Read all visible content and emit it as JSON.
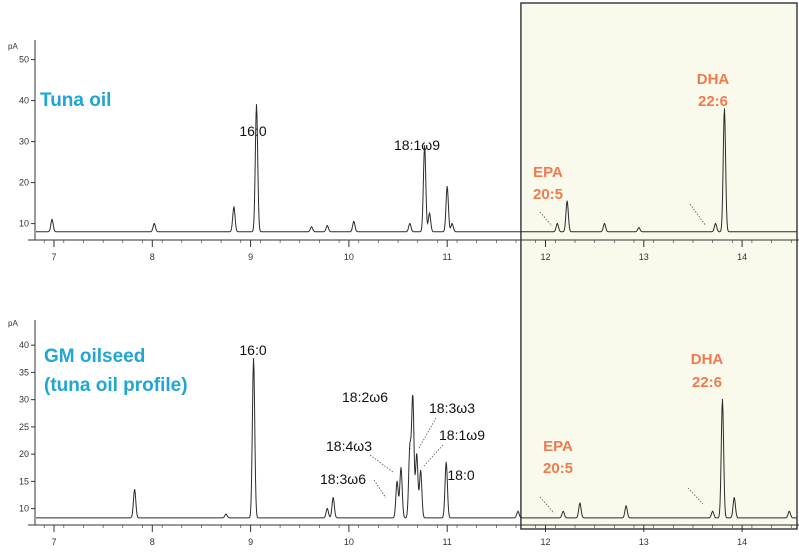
{
  "colors": {
    "sample_label": "#1FA5D6",
    "fatty_acid_label": "#F07A4E",
    "highlight_fill": "#FAFAEC",
    "trace": "#2b2b2b",
    "axis": "#333333"
  },
  "chart_data": [
    {
      "type": "line",
      "title": "Tuna oil",
      "ylabel": "pA",
      "xlabel": "",
      "xlim": [
        6.85,
        14.65
      ],
      "ylim": [
        6,
        55
      ],
      "x_ticks": [
        7,
        8,
        9,
        10,
        11,
        12,
        13,
        14
      ],
      "y_ticks": [
        10,
        20,
        30,
        40,
        50
      ],
      "grid": false,
      "highlight_region": [
        11.75,
        14.65
      ],
      "baseline": 8,
      "series": [
        {
          "peaks": [
            {
              "x": 6.98,
              "height": 11
            },
            {
              "x": 8.02,
              "height": 10
            },
            {
              "x": 8.83,
              "height": 14
            },
            {
              "x": 9.06,
              "height": 39
            },
            {
              "x": 9.62,
              "height": 9.2
            },
            {
              "x": 9.78,
              "height": 9.5
            },
            {
              "x": 10.05,
              "height": 10.5
            },
            {
              "x": 10.62,
              "height": 10
            },
            {
              "x": 10.77,
              "height": 29
            },
            {
              "x": 10.82,
              "height": 12.5
            },
            {
              "x": 11.0,
              "height": 19
            },
            {
              "x": 11.05,
              "height": 10
            },
            {
              "x": 12.12,
              "height": 10
            },
            {
              "x": 12.22,
              "height": 15.5
            },
            {
              "x": 12.6,
              "height": 10
            },
            {
              "x": 12.95,
              "height": 9
            },
            {
              "x": 13.73,
              "height": 10
            },
            {
              "x": 13.82,
              "height": 38
            }
          ]
        }
      ],
      "annotations": [
        {
          "text": "16:0",
          "x": 9.06,
          "y": 39
        },
        {
          "text": "18:1ω9",
          "x": 10.77,
          "y": 29
        },
        {
          "text": "EPA",
          "x": 12.22,
          "y": 15.5
        },
        {
          "text": "20:5",
          "x": 12.22,
          "y": 15.5
        },
        {
          "text": "DHA",
          "x": 13.82,
          "y": 38
        },
        {
          "text": "22:6",
          "x": 13.82,
          "y": 38
        }
      ]
    },
    {
      "type": "line",
      "title": "GM oilseed",
      "subtitle": "(tuna oil profile)",
      "ylabel": "pA",
      "xlabel": "",
      "xlim": [
        6.85,
        14.65
      ],
      "ylim": [
        7,
        41
      ],
      "x_ticks": [
        7,
        8,
        9,
        10,
        11,
        12,
        13,
        14
      ],
      "y_ticks": [
        10,
        15,
        20,
        25,
        30,
        35,
        40
      ],
      "grid": false,
      "highlight_region": [
        11.75,
        14.65
      ],
      "baseline": 8.3,
      "series": [
        {
          "peaks": [
            {
              "x": 7.82,
              "height": 13.5
            },
            {
              "x": 8.75,
              "height": 9
            },
            {
              "x": 9.03,
              "height": 37.5
            },
            {
              "x": 9.78,
              "height": 10
            },
            {
              "x": 9.84,
              "height": 12
            },
            {
              "x": 10.49,
              "height": 15
            },
            {
              "x": 10.53,
              "height": 17.5
            },
            {
              "x": 10.62,
              "height": 21
            },
            {
              "x": 10.65,
              "height": 30.5
            },
            {
              "x": 10.69,
              "height": 20
            },
            {
              "x": 10.73,
              "height": 17
            },
            {
              "x": 10.99,
              "height": 18.5
            },
            {
              "x": 11.72,
              "height": 9.5
            },
            {
              "x": 12.18,
              "height": 9.5
            },
            {
              "x": 12.35,
              "height": 11
            },
            {
              "x": 12.82,
              "height": 10.5
            },
            {
              "x": 13.7,
              "height": 9.5
            },
            {
              "x": 13.8,
              "height": 30
            },
            {
              "x": 13.92,
              "height": 12
            },
            {
              "x": 14.48,
              "height": 9.5
            }
          ]
        }
      ],
      "annotations": [
        {
          "text": "16:0",
          "x": 9.03,
          "y": 37.5
        },
        {
          "text": "18:2ω6",
          "x": 10.65,
          "y": 30.5
        },
        {
          "text": "18:3ω3",
          "x": 10.69,
          "y": 20
        },
        {
          "text": "18:4ω3",
          "x": 10.53,
          "y": 17.5
        },
        {
          "text": "18:1ω9",
          "x": 10.73,
          "y": 17
        },
        {
          "text": "18:3ω6",
          "x": 10.49,
          "y": 15
        },
        {
          "text": "18:0",
          "x": 10.99,
          "y": 18.5
        },
        {
          "text": "EPA",
          "x": 12.18,
          "y": 9.5
        },
        {
          "text": "20:5",
          "x": 12.18,
          "y": 9.5
        },
        {
          "text": "DHA",
          "x": 13.8,
          "y": 30
        },
        {
          "text": "22:6",
          "x": 13.8,
          "y": 30
        }
      ]
    }
  ]
}
